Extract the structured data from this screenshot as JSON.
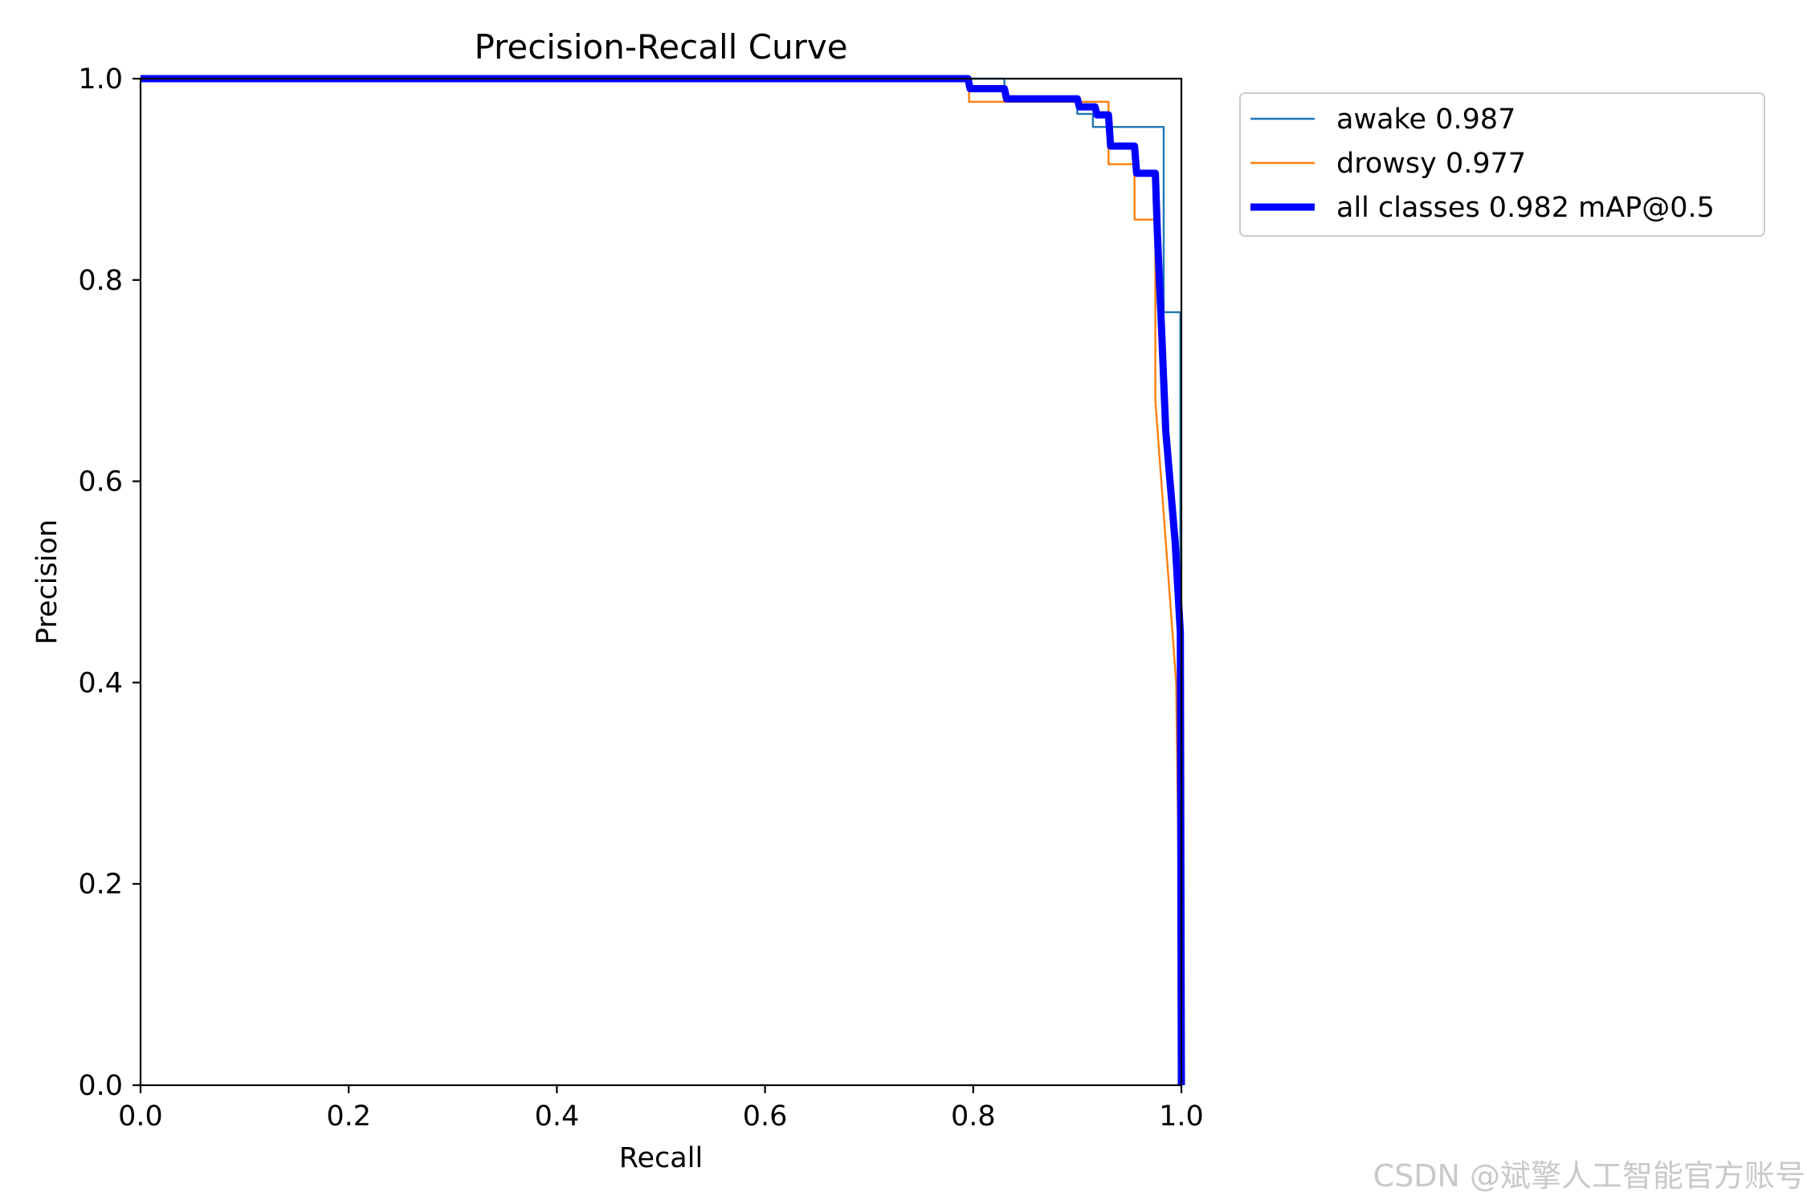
{
  "chart_data": {
    "type": "line",
    "title": "Precision-Recall Curve",
    "xlabel": "Recall",
    "ylabel": "Precision",
    "xlim": [
      0,
      1
    ],
    "ylim": [
      0,
      1
    ],
    "x_ticks": [
      "0.0",
      "0.2",
      "0.4",
      "0.6",
      "0.8",
      "1.0"
    ],
    "y_ticks": [
      "0.0",
      "0.2",
      "0.4",
      "0.6",
      "0.8",
      "1.0"
    ],
    "grid": false,
    "legend_position": "outside-right-top",
    "series": [
      {
        "name": "awake 0.987",
        "color": "#1f77b4",
        "style": "thin",
        "x": [
          0.0,
          0.83,
          0.83,
          0.9,
          0.9,
          0.915,
          0.915,
          0.935,
          0.935,
          0.983,
          0.983,
          0.985,
          0.985,
          0.999,
          0.999,
          1.0
        ],
        "y": [
          1.0,
          1.0,
          0.978,
          0.978,
          0.965,
          0.965,
          0.952,
          0.952,
          0.952,
          0.952,
          0.768,
          0.768,
          0.768,
          0.768,
          0.0,
          0.0
        ]
      },
      {
        "name": "drowsy 0.977",
        "color": "#ff7f0e",
        "style": "thin",
        "x": [
          0.0,
          0.796,
          0.796,
          0.93,
          0.93,
          0.955,
          0.955,
          0.975,
          0.975,
          0.995,
          1.0
        ],
        "y": [
          1.0,
          1.0,
          0.977,
          0.977,
          0.915,
          0.915,
          0.86,
          0.86,
          0.68,
          0.4,
          0.0
        ]
      },
      {
        "name": "all classes 0.982 mAP@0.5",
        "color": "#0000ff",
        "style": "thick",
        "x": [
          0.0,
          0.795,
          0.797,
          0.83,
          0.832,
          0.9,
          0.902,
          0.917,
          0.919,
          0.93,
          0.932,
          0.955,
          0.957,
          0.975,
          0.977,
          0.981,
          0.985,
          0.994,
          0.999,
          1.0
        ],
        "y": [
          1.0,
          1.0,
          0.99,
          0.99,
          0.98,
          0.98,
          0.972,
          0.972,
          0.964,
          0.964,
          0.933,
          0.933,
          0.906,
          0.906,
          0.845,
          0.75,
          0.65,
          0.54,
          0.45,
          0.0
        ]
      }
    ]
  },
  "watermark": "CSDN @斌擎人工智能官方账号"
}
